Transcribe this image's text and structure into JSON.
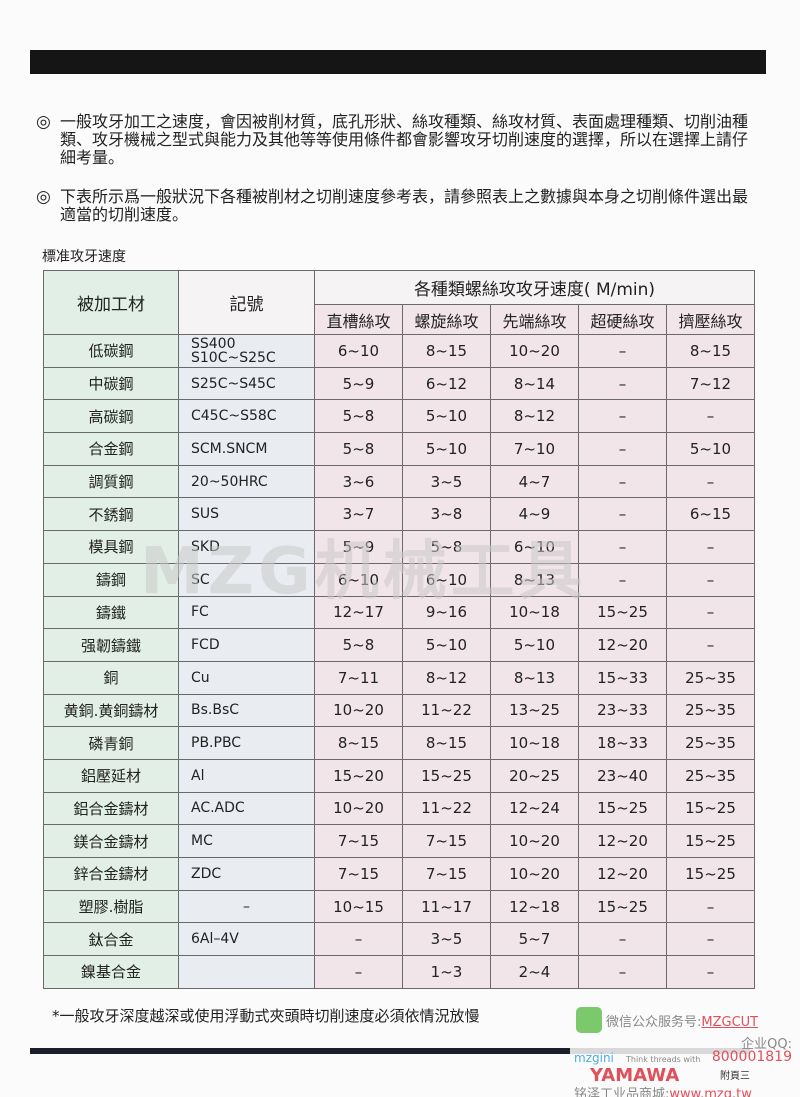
{
  "paragraphs": [
    {
      "marker": "◎",
      "text": "一般攻牙加工之速度，會因被削材質，底孔形狀、絲攻種類、絲攻材質、表面處理種類、切削油種類、攻牙機械之型式與能力及其他等等使用條件都會影響攻牙切削速度的選擇，所以在選擇上請仔細考量。"
    },
    {
      "marker": "◎",
      "text": "下表所示爲一般狀況下各種被削材之切削速度參考表，請參照表上之數據與本身之切削條件選出最適當的切削速度。"
    }
  ],
  "table_caption": "標准攻牙速度",
  "table": {
    "header_material": "被加工材",
    "header_code": "記號",
    "header_group": "各種類螺絲攻攻牙速度( M/min)",
    "columns": [
      "直槽絲攻",
      "螺旋絲攻",
      "先端絲攻",
      "超硬絲攻",
      "擠壓絲攻"
    ],
    "rows": [
      {
        "material": "低碳鋼",
        "code": "SS400\nS10C~S25C",
        "values": [
          "6~10",
          "8~15",
          "10~20",
          "–",
          "8~15"
        ]
      },
      {
        "material": "中碳鋼",
        "code": "S25C~S45C",
        "values": [
          "5~9",
          "6~12",
          "8~14",
          "–",
          "7~12"
        ]
      },
      {
        "material": "高碳鋼",
        "code": "C45C~S58C",
        "values": [
          "5~8",
          "5~10",
          "8~12",
          "–",
          "–"
        ]
      },
      {
        "material": "合金鋼",
        "code": "SCM.SNCM",
        "values": [
          "5~8",
          "5~10",
          "7~10",
          "–",
          "5~10"
        ]
      },
      {
        "material": "調質鋼",
        "code": "20~50HRC",
        "values": [
          "3~6",
          "3~5",
          "4~7",
          "–",
          "–"
        ]
      },
      {
        "material": "不銹鋼",
        "code": "SUS",
        "values": [
          "3~7",
          "3~8",
          "4~9",
          "–",
          "6~15"
        ]
      },
      {
        "material": "模具鋼",
        "code": "SKD",
        "values": [
          "5~9",
          "5~8",
          "6~10",
          "–",
          "–"
        ]
      },
      {
        "material": "鑄鋼",
        "code": "SC",
        "values": [
          "6~10",
          "6~10",
          "8~13",
          "–",
          "–"
        ]
      },
      {
        "material": "鑄鐵",
        "code": "FC",
        "values": [
          "12~17",
          "9~16",
          "10~18",
          "15~25",
          "–"
        ]
      },
      {
        "material": "强韌鑄鐵",
        "code": "FCD",
        "values": [
          "5~8",
          "5~10",
          "5~10",
          "12~20",
          "–"
        ]
      },
      {
        "material": "銅",
        "code": "Cu",
        "values": [
          "7~11",
          "8~12",
          "8~13",
          "15~33",
          "25~35"
        ]
      },
      {
        "material": "黄銅.黄銅鑄材",
        "code": "Bs.BsC",
        "values": [
          "10~20",
          "11~22",
          "13~25",
          "23~33",
          "25~35"
        ]
      },
      {
        "material": "磷青銅",
        "code": "PB.PBC",
        "values": [
          "8~15",
          "8~15",
          "10~18",
          "18~33",
          "25~35"
        ]
      },
      {
        "material": "鋁壓延材",
        "code": "Al",
        "values": [
          "15~20",
          "15~25",
          "20~25",
          "23~40",
          "25~35"
        ]
      },
      {
        "material": "鋁合金鑄材",
        "code": "AC.ADC",
        "values": [
          "10~20",
          "11~22",
          "12~24",
          "15~25",
          "15~25"
        ]
      },
      {
        "material": "鎂合金鑄材",
        "code": "MC",
        "values": [
          "7~15",
          "7~15",
          "10~20",
          "12~20",
          "15~25"
        ]
      },
      {
        "material": "鋅合金鑄材",
        "code": "ZDC",
        "values": [
          "7~15",
          "7~15",
          "10~20",
          "12~20",
          "15~25"
        ]
      },
      {
        "material": "塑膠.樹脂",
        "code": "–",
        "values": [
          "10~15",
          "11~17",
          "12~18",
          "15~25",
          "–"
        ]
      },
      {
        "material": "鈦合金",
        "code": "6Al–4V",
        "values": [
          "–",
          "3~5",
          "5~7",
          "–",
          "–"
        ]
      },
      {
        "material": "鎳基合金",
        "code": "",
        "values": [
          "–",
          "1~3",
          "2~4",
          "–",
          "–"
        ]
      }
    ]
  },
  "footnote": "*一般攻牙深度越深或使用浮動式夾頭時切削速度必須依情況放慢",
  "watermark": "MZG机械工具",
  "ad": {
    "wechat_label": "微信公众服务号:",
    "wechat_id": "MZGCUT",
    "qq_label": "企业QQ:",
    "qq": "800001819",
    "brand": "mzgini",
    "slogan": "Think threads with",
    "logo": "YAMAWA",
    "page_label": "附頁三",
    "mall_label": "铭泽工业品商城:",
    "url": "www.mzg.tw"
  }
}
